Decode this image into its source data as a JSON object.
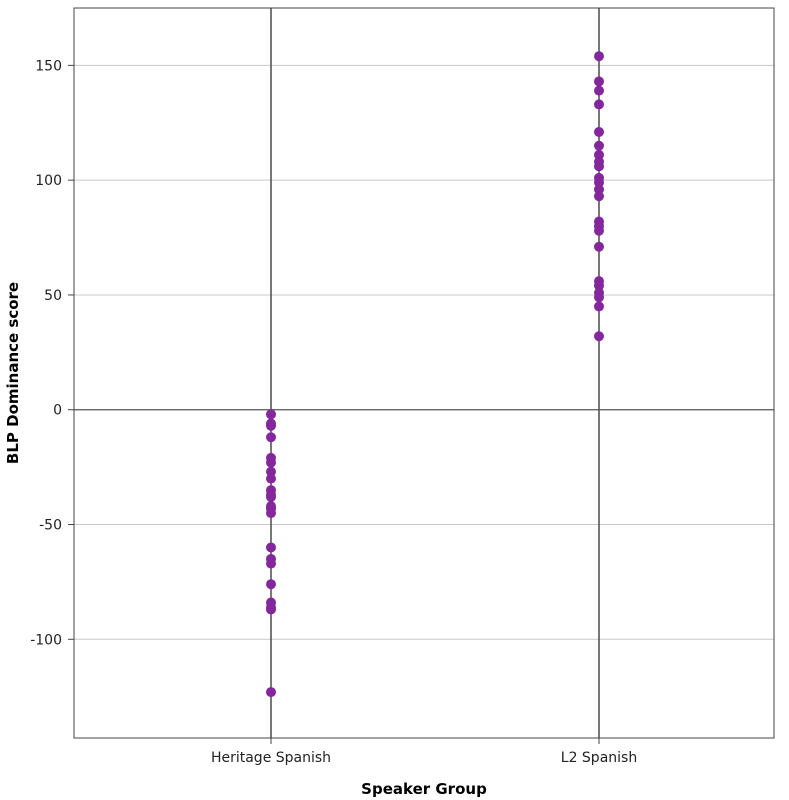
{
  "chart_data": {
    "type": "scatter",
    "title": "",
    "xlabel": "Speaker Group",
    "ylabel": "BLP Dominance score",
    "categories": [
      "Heritage Spanish",
      "L2 Spanish"
    ],
    "ylim": [
      -143,
      175
    ],
    "yticks": [
      150,
      100,
      50,
      0,
      -50,
      -100
    ],
    "grid": true,
    "legend": "none",
    "colors": {
      "point": "#84279c",
      "gridline": "#c8c8c8",
      "zero_line": "#555555",
      "category_line": "#555555",
      "frame": "#444444"
    },
    "series": [
      {
        "category": "Heritage Spanish",
        "values": [
          -2,
          -6,
          -7,
          -12,
          -21,
          -23,
          -27,
          -30,
          -35,
          -37,
          -38,
          -42,
          -43,
          -45,
          -60,
          -65,
          -67,
          -76,
          -84,
          -86,
          -87,
          -123
        ]
      },
      {
        "category": "L2 Spanish",
        "values": [
          154,
          143,
          139,
          133,
          121,
          115,
          111,
          108,
          106,
          101,
          99,
          96,
          93,
          82,
          80,
          78,
          71,
          56,
          54,
          51,
          49,
          45,
          32
        ]
      }
    ]
  }
}
